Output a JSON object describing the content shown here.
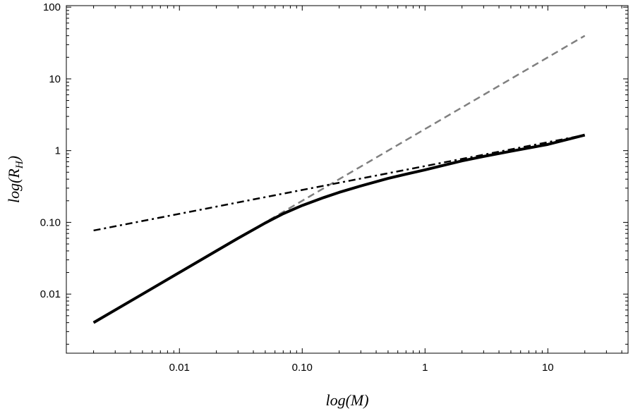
{
  "chart_data": {
    "type": "line",
    "xlabel_main": "log(M)",
    "ylabel_main": "log(R",
    "ylabel_sub": "H",
    "ylabel_close": ")",
    "xscale": "log",
    "yscale": "log",
    "xlim": [
      0.0012,
      45
    ],
    "ylim": [
      0.0015,
      105
    ],
    "x_ticks": [
      {
        "value": 0.01,
        "label": "0.01"
      },
      {
        "value": 0.1,
        "label": "0.10"
      },
      {
        "value": 1,
        "label": "1"
      },
      {
        "value": 10,
        "label": "10"
      }
    ],
    "y_ticks": [
      {
        "value": 0.01,
        "label": "0.01"
      },
      {
        "value": 0.1,
        "label": "0.10"
      },
      {
        "value": 1,
        "label": "1"
      },
      {
        "value": 10,
        "label": "10"
      },
      {
        "value": 100,
        "label": "100"
      }
    ],
    "grid": false,
    "series": [
      {
        "style": "solid-thick",
        "color": "#000000",
        "x": [
          0.002,
          0.005,
          0.01,
          0.02,
          0.03,
          0.05,
          0.07,
          0.1,
          0.15,
          0.2,
          0.3,
          0.5,
          0.7,
          1,
          2,
          3,
          5,
          10,
          20
        ],
        "y": [
          0.004,
          0.01,
          0.02,
          0.04,
          0.06,
          0.098,
          0.132,
          0.172,
          0.222,
          0.262,
          0.322,
          0.41,
          0.47,
          0.54,
          0.72,
          0.83,
          0.98,
          1.22,
          1.65
        ]
      },
      {
        "style": "dashed",
        "color": "#808080",
        "x": [
          0.002,
          20
        ],
        "y": [
          0.004,
          40
        ]
      },
      {
        "style": "dashdot",
        "color": "#000000",
        "x": [
          0.002,
          20
        ],
        "y": [
          0.077,
          1.65
        ]
      }
    ]
  }
}
